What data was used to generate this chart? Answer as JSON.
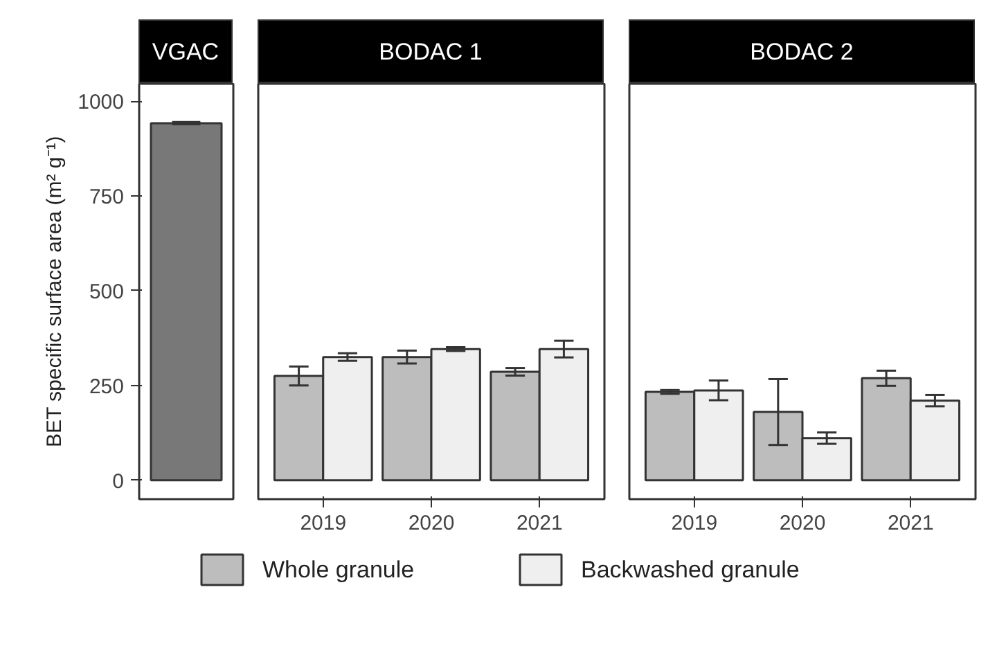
{
  "chart_data": [
    {
      "type": "bar",
      "title": "VGAC",
      "ylabel": "BET specific surface area (m² g⁻¹)",
      "categories": [
        null
      ],
      "ylim": [
        -50,
        1046
      ],
      "yticks": [
        0,
        250,
        500,
        750,
        1000
      ],
      "tick_labels": "y",
      "grid": false,
      "series": [
        {
          "color": "#787878",
          "values": [
            942
          ],
          "errors": [
            3
          ]
        }
      ]
    },
    {
      "type": "bar",
      "title": "BODAC 1",
      "categories": [
        "2019",
        "2020",
        "2021"
      ],
      "ylim": [
        -50,
        1046
      ],
      "tick_labels": "x",
      "grid": false,
      "legend": "bottom",
      "series": [
        {
          "name": "Whole granule",
          "color": "#bdbdbd",
          "values": [
            275,
            325,
            286
          ],
          "errors": [
            25,
            17,
            10
          ]
        },
        {
          "name": "Backwashed granule",
          "color": "#efefef",
          "values": [
            325,
            346,
            346
          ],
          "errors": [
            10,
            5,
            22
          ]
        }
      ]
    },
    {
      "type": "bar",
      "title": "BODAC 2",
      "categories": [
        "2019",
        "2020",
        "2021"
      ],
      "ylim": [
        -50,
        1046
      ],
      "tick_labels": "x",
      "grid": false,
      "series": [
        {
          "color": "#bdbdbd",
          "values": [
            233,
            180,
            269
          ],
          "errors": [
            5,
            87,
            20
          ]
        },
        {
          "color": "#efefef",
          "values": [
            237,
            111,
            210
          ],
          "errors": [
            26,
            15,
            15
          ]
        }
      ]
    }
  ]
}
